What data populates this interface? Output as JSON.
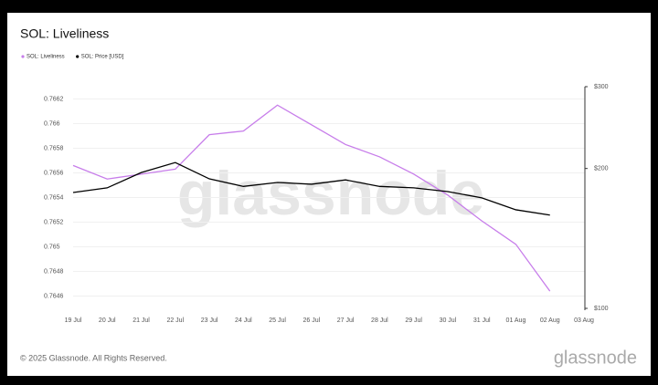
{
  "chart_data": {
    "type": "line",
    "title": "SOL: Liveliness",
    "categories": [
      "19 Jul",
      "20 Jul",
      "21 Jul",
      "22 Jul",
      "23 Jul",
      "24 Jul",
      "25 Jul",
      "26 Jul",
      "27 Jul",
      "28 Jul",
      "29 Jul",
      "30 Jul",
      "31 Jul",
      "01 Aug",
      "02 Aug",
      "03 Aug"
    ],
    "series": [
      {
        "name": "SOL: Liveliness",
        "color": "#c77dea",
        "values": [
          0.76566,
          0.76555,
          0.76559,
          0.76563,
          0.76591,
          0.76594,
          0.76615,
          0.76599,
          0.76583,
          0.76573,
          0.76559,
          0.76542,
          0.76521,
          0.76502,
          0.76464,
          null
        ]
      },
      {
        "name": "SOL: Price [USD]",
        "color": "#000000",
        "axis": "y2",
        "values": [
          177.6,
          181.7,
          196,
          206,
          190,
          183,
          186.6,
          185,
          189,
          183,
          181.7,
          178.4,
          172.9,
          163,
          158.8,
          null
        ]
      }
    ],
    "ylim": [
      0.7645,
      0.7663
    ],
    "yticks": [
      0.7646,
      0.7648,
      0.765,
      0.7652,
      0.7654,
      0.7656,
      0.7658,
      0.766,
      0.7662
    ],
    "y2lim": [
      100,
      300
    ],
    "y2scale": "log",
    "y2ticks": [
      {
        "value": 100,
        "label": "$100"
      },
      {
        "value": 200,
        "label": "$200"
      },
      {
        "value": 300,
        "label": "$300"
      }
    ],
    "grid": true,
    "legend": "top-left",
    "watermark": "glassnode"
  },
  "footer": {
    "copyright": "© 2025 Glassnode. All Rights Reserved.",
    "logo": "glassnode"
  }
}
